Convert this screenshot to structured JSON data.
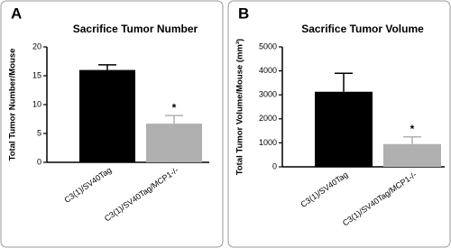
{
  "chart_data": [
    {
      "type": "bar",
      "panel": "A",
      "title": "Sacrifice Tumor Number",
      "y_label": "Total Tumor Number/Mouse",
      "categories": [
        "C3(1)/SV40Tag",
        "C3(1)/SV40Tag/MCP1-/-"
      ],
      "values": [
        16,
        6.7
      ],
      "errors": [
        0.9,
        1.4
      ],
      "colors": [
        "#000000",
        "#b0b0b0"
      ],
      "annotation": "*",
      "ylim": [
        0,
        20
      ],
      "yticks": [
        0,
        5,
        10,
        15,
        20
      ]
    },
    {
      "type": "bar",
      "panel": "B",
      "title": "Sacrifice Tumor Volume",
      "y_label": "Total Tumor Volume/Mouse (mm³)",
      "categories": [
        "C3(1)/SV40Tag",
        "C3(1)/SV40Tag/MCP1-/-"
      ],
      "values": [
        3130,
        950
      ],
      "errors": [
        770,
        300
      ],
      "colors": [
        "#000000",
        "#b0b0b0"
      ],
      "annotation": "*",
      "ylim": [
        0,
        5000
      ],
      "yticks": [
        0,
        1000,
        2000,
        3000,
        4000,
        5000
      ]
    }
  ]
}
